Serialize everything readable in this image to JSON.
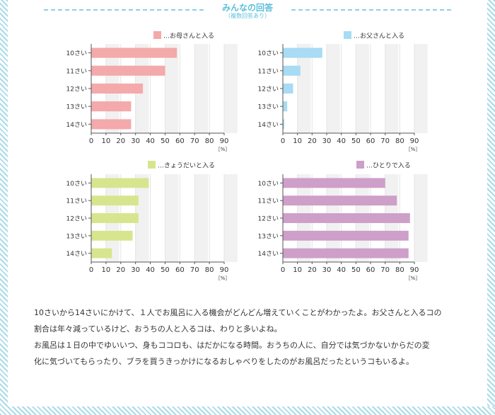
{
  "header": {
    "title": "みんなの回答",
    "subtitle": "（複数回答あり）"
  },
  "colors": {
    "mother": "#f4a9ab",
    "father": "#a8dbf4",
    "siblings": "#d7e58e",
    "alone": "#cd9fc9",
    "stripe": "#a9dbe9",
    "accent": "#5cbfd9"
  },
  "chart_data": [
    {
      "type": "bar",
      "orientation": "horizontal",
      "legend": "…お母さんと入る",
      "color": "#f4a9ab",
      "categories": [
        "10さい",
        "11さい",
        "12さい",
        "13さい",
        "14さい"
      ],
      "values": [
        58,
        50,
        35,
        27,
        27
      ],
      "xticks": [
        "0",
        "10",
        "20",
        "30",
        "40",
        "50",
        "60",
        "70",
        "80",
        "90"
      ],
      "xlim": [
        0,
        90
      ],
      "unit": "［%］"
    },
    {
      "type": "bar",
      "orientation": "horizontal",
      "legend": "…お父さんと入る",
      "color": "#a8dbf4",
      "categories": [
        "10さい",
        "11さい",
        "12さい",
        "13さい",
        "14さい"
      ],
      "values": [
        27,
        12,
        7,
        3,
        1
      ],
      "xticks": [
        "0",
        "10",
        "20",
        "30",
        "40",
        "50",
        "60",
        "70",
        "80",
        "90"
      ],
      "xlim": [
        0,
        90
      ],
      "unit": "［%］"
    },
    {
      "type": "bar",
      "orientation": "horizontal",
      "legend": "…きょうだいと入る",
      "color": "#d7e58e",
      "categories": [
        "10さい",
        "11さい",
        "12さい",
        "13さい",
        "14さい"
      ],
      "values": [
        39,
        32,
        32,
        28,
        14
      ],
      "xticks": [
        "0",
        "10",
        "20",
        "30",
        "40",
        "50",
        "60",
        "70",
        "80",
        "90"
      ],
      "xlim": [
        0,
        90
      ],
      "unit": "［%］"
    },
    {
      "type": "bar",
      "orientation": "horizontal",
      "legend": "…ひとりで入る",
      "color": "#cd9fc9",
      "categories": [
        "10さい",
        "11さい",
        "12さい",
        "13さい",
        "14さい"
      ],
      "values": [
        70,
        78,
        87,
        86,
        86
      ],
      "xticks": [
        "0",
        "10",
        "20",
        "30",
        "40",
        "50",
        "60",
        "70",
        "80",
        "90"
      ],
      "xlim": [
        0,
        90
      ],
      "unit": "［%］"
    }
  ],
  "paragraph": {
    "line1": "10さいから14さいにかけて、１人でお風呂に入る機会がどんどん増えていくことがわかったよ。お父さんと入るコの",
    "line2": "割合は年々減っているけど、おうちの人と入るコは、わりと多いよね。",
    "line3": "お風呂は１日の中でゆいいつ、身もココロも、はだかになる時間。おうちの人に、自分では気づかないからだの変",
    "line4": "化に気づいてもらったり、ブラを買うきっかけになるおしゃべりをしたのがお風呂だったというコもいるよ。"
  }
}
